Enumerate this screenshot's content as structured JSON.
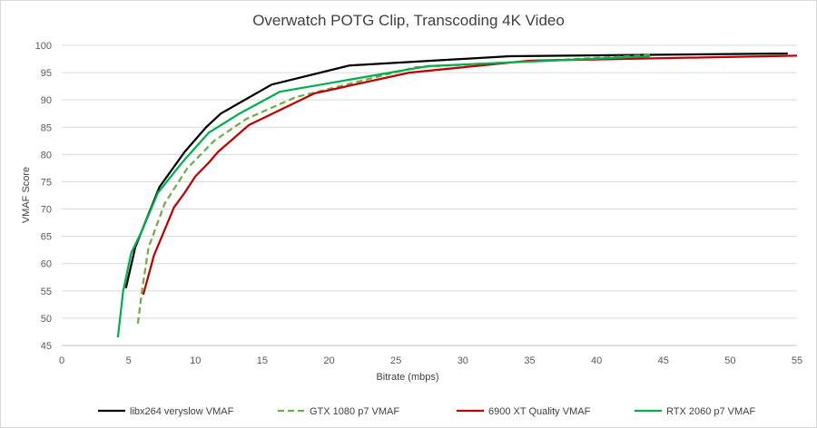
{
  "chart_data": {
    "type": "line",
    "title": "Overwatch POTG Clip, Transcoding 4K Video",
    "xlabel": "Bitrate (mbps)",
    "ylabel": "VMAF Score",
    "xlim": [
      0,
      55
    ],
    "ylim": [
      45,
      100
    ],
    "xticks": [
      0,
      5,
      10,
      15,
      20,
      25,
      30,
      35,
      40,
      45,
      50,
      55
    ],
    "yticks": [
      45,
      50,
      55,
      60,
      65,
      70,
      75,
      80,
      85,
      90,
      95,
      100
    ],
    "grid": "horizontal",
    "legend_position": "bottom",
    "series": [
      {
        "name": "libx264 veryslow VMAF",
        "color": "#000000",
        "dash": "solid",
        "points": [
          [
            4.8,
            55.5
          ],
          [
            5.5,
            63.0
          ],
          [
            7.3,
            74.0
          ],
          [
            9.2,
            80.5
          ],
          [
            10.8,
            85.0
          ],
          [
            11.9,
            87.5
          ],
          [
            15.7,
            92.8
          ],
          [
            21.5,
            96.3
          ],
          [
            33.5,
            98.0
          ],
          [
            54.3,
            98.5
          ]
        ]
      },
      {
        "name": "GTX 1080 p7 VMAF",
        "color": "#70ad47",
        "dash": "dashed",
        "points": [
          [
            5.7,
            49.0
          ],
          [
            6.0,
            55.0
          ],
          [
            6.5,
            63.0
          ],
          [
            7.7,
            71.0
          ],
          [
            9.4,
            77.5
          ],
          [
            11.4,
            82.5
          ],
          [
            13.8,
            86.5
          ],
          [
            17.5,
            90.5
          ],
          [
            26.5,
            96.0
          ],
          [
            44.0,
            98.2
          ]
        ]
      },
      {
        "name": "6900 XT Quality VMAF",
        "color": "#c00000",
        "dash": "solid",
        "points": [
          [
            6.1,
            54.3
          ],
          [
            6.9,
            61.5
          ],
          [
            8.4,
            70.3
          ],
          [
            9.2,
            73.0
          ],
          [
            10.0,
            76.0
          ],
          [
            11.0,
            78.5
          ],
          [
            11.7,
            80.5
          ],
          [
            14.0,
            85.4
          ],
          [
            18.9,
            91.2
          ],
          [
            26.0,
            95.0
          ],
          [
            35.0,
            97.2
          ],
          [
            55.0,
            98.1
          ]
        ]
      },
      {
        "name": "RTX 2060 p7 VMAF",
        "color": "#00b050",
        "dash": "solid",
        "points": [
          [
            4.2,
            46.5
          ],
          [
            4.6,
            55.0
          ],
          [
            5.2,
            62.0
          ],
          [
            6.0,
            66.0
          ],
          [
            7.2,
            73.0
          ],
          [
            9.0,
            78.5
          ],
          [
            11.0,
            84.0
          ],
          [
            13.3,
            87.5
          ],
          [
            16.3,
            91.5
          ],
          [
            27.4,
            96.2
          ],
          [
            44.0,
            98.0
          ]
        ]
      }
    ]
  }
}
